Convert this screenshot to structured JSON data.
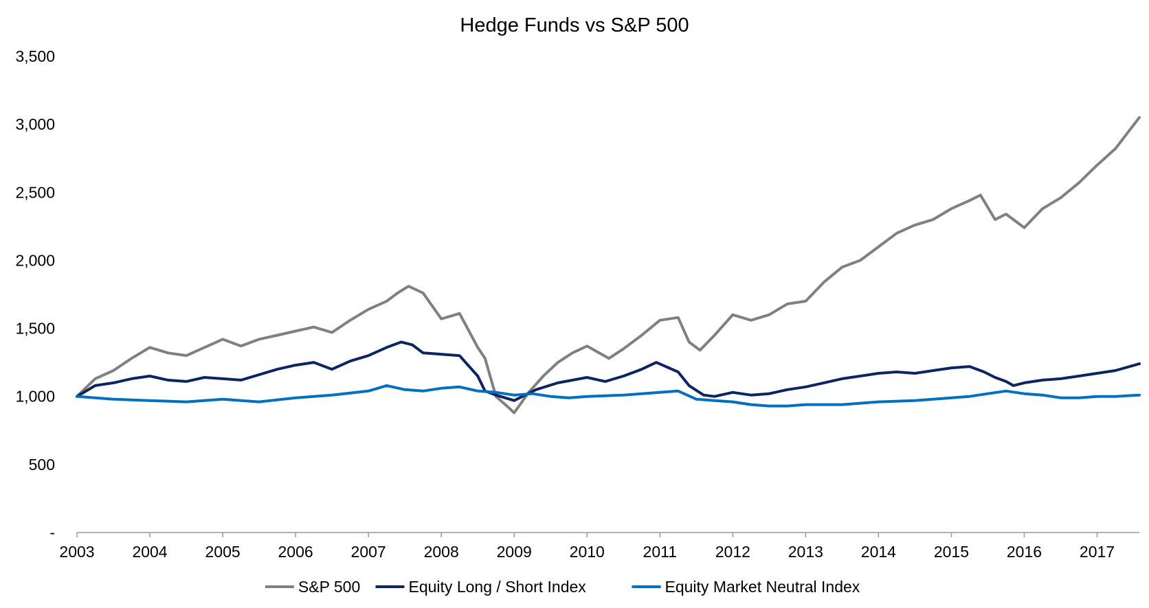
{
  "chart_data": {
    "type": "line",
    "title": "Hedge Funds vs S&P 500",
    "xlabel": "",
    "ylabel": "",
    "x_ticks": [
      "2003",
      "2004",
      "2005",
      "2006",
      "2007",
      "2008",
      "2009",
      "2010",
      "2011",
      "2012",
      "2013",
      "2014",
      "2015",
      "2016",
      "2017"
    ],
    "y_ticks": [
      "-",
      "500",
      "1,000",
      "1,500",
      "2,000",
      "2,500",
      "3,000",
      "3,500"
    ],
    "ylim": [
      0,
      3500
    ],
    "xlim": [
      2003.0,
      2017.58
    ],
    "grid": false,
    "legend_position": "bottom",
    "series": [
      {
        "name": "S&P 500",
        "color": "#808080",
        "x": [
          2003.0,
          2003.25,
          2003.5,
          2003.75,
          2004.0,
          2004.25,
          2004.5,
          2004.75,
          2005.0,
          2005.25,
          2005.5,
          2005.75,
          2006.0,
          2006.25,
          2006.5,
          2006.75,
          2007.0,
          2007.25,
          2007.4,
          2007.55,
          2007.75,
          2008.0,
          2008.25,
          2008.5,
          2008.6,
          2008.75,
          2008.9,
          2009.0,
          2009.2,
          2009.4,
          2009.6,
          2009.8,
          2010.0,
          2010.3,
          2010.5,
          2010.75,
          2011.0,
          2011.25,
          2011.4,
          2011.55,
          2011.75,
          2012.0,
          2012.25,
          2012.5,
          2012.75,
          2013.0,
          2013.25,
          2013.5,
          2013.75,
          2014.0,
          2014.25,
          2014.5,
          2014.75,
          2015.0,
          2015.25,
          2015.4,
          2015.6,
          2015.75,
          2015.9,
          2016.0,
          2016.25,
          2016.5,
          2016.75,
          2017.0,
          2017.25,
          2017.58
        ],
        "values": [
          1000,
          1130,
          1190,
          1280,
          1360,
          1320,
          1300,
          1360,
          1420,
          1370,
          1420,
          1450,
          1480,
          1510,
          1470,
          1560,
          1640,
          1700,
          1760,
          1810,
          1760,
          1570,
          1610,
          1360,
          1280,
          1000,
          930,
          880,
          1030,
          1150,
          1250,
          1320,
          1370,
          1280,
          1350,
          1450,
          1560,
          1580,
          1400,
          1340,
          1450,
          1600,
          1560,
          1600,
          1680,
          1700,
          1840,
          1950,
          2000,
          2100,
          2200,
          2260,
          2300,
          2380,
          2440,
          2480,
          2300,
          2340,
          2280,
          2240,
          2380,
          2460,
          2570,
          2700,
          2820,
          3050
        ]
      },
      {
        "name": "Equity Long / Short Index",
        "color": "#0c2461",
        "x": [
          2003.0,
          2003.25,
          2003.5,
          2003.75,
          2004.0,
          2004.25,
          2004.5,
          2004.75,
          2005.0,
          2005.25,
          2005.5,
          2005.75,
          2006.0,
          2006.25,
          2006.5,
          2006.75,
          2007.0,
          2007.25,
          2007.45,
          2007.6,
          2007.75,
          2008.0,
          2008.25,
          2008.5,
          2008.6,
          2008.75,
          2009.0,
          2009.3,
          2009.6,
          2010.0,
          2010.25,
          2010.5,
          2010.75,
          2010.95,
          2011.25,
          2011.4,
          2011.6,
          2011.75,
          2012.0,
          2012.25,
          2012.5,
          2012.75,
          2013.0,
          2013.25,
          2013.5,
          2013.75,
          2014.0,
          2014.25,
          2014.5,
          2014.75,
          2015.0,
          2015.25,
          2015.45,
          2015.6,
          2015.75,
          2015.85,
          2016.0,
          2016.25,
          2016.5,
          2016.75,
          2017.0,
          2017.25,
          2017.58
        ],
        "values": [
          1000,
          1080,
          1100,
          1130,
          1150,
          1120,
          1110,
          1140,
          1130,
          1120,
          1160,
          1200,
          1230,
          1250,
          1200,
          1260,
          1300,
          1360,
          1400,
          1380,
          1320,
          1310,
          1300,
          1150,
          1040,
          1010,
          970,
          1050,
          1100,
          1140,
          1110,
          1150,
          1200,
          1250,
          1180,
          1080,
          1010,
          1000,
          1030,
          1010,
          1020,
          1050,
          1070,
          1100,
          1130,
          1150,
          1170,
          1180,
          1170,
          1190,
          1210,
          1220,
          1180,
          1140,
          1110,
          1080,
          1100,
          1120,
          1130,
          1150,
          1170,
          1190,
          1240
        ]
      },
      {
        "name": "Equity Market Neutral Index",
        "color": "#0070c0",
        "x": [
          2003.0,
          2003.5,
          2004.0,
          2004.5,
          2005.0,
          2005.5,
          2006.0,
          2006.5,
          2007.0,
          2007.25,
          2007.5,
          2007.75,
          2008.0,
          2008.25,
          2008.5,
          2008.75,
          2009.0,
          2009.25,
          2009.5,
          2009.75,
          2010.0,
          2010.5,
          2011.0,
          2011.25,
          2011.5,
          2011.75,
          2012.0,
          2012.25,
          2012.5,
          2012.75,
          2013.0,
          2013.5,
          2014.0,
          2014.5,
          2015.0,
          2015.25,
          2015.5,
          2015.75,
          2016.0,
          2016.25,
          2016.5,
          2016.75,
          2017.0,
          2017.25,
          2017.58
        ],
        "values": [
          1000,
          980,
          970,
          960,
          980,
          960,
          990,
          1010,
          1040,
          1080,
          1050,
          1040,
          1060,
          1070,
          1040,
          1030,
          1010,
          1020,
          1000,
          990,
          1000,
          1010,
          1030,
          1040,
          980,
          970,
          960,
          940,
          930,
          930,
          940,
          940,
          960,
          970,
          990,
          1000,
          1020,
          1040,
          1020,
          1010,
          990,
          990,
          1000,
          1000,
          1010
        ]
      }
    ]
  }
}
